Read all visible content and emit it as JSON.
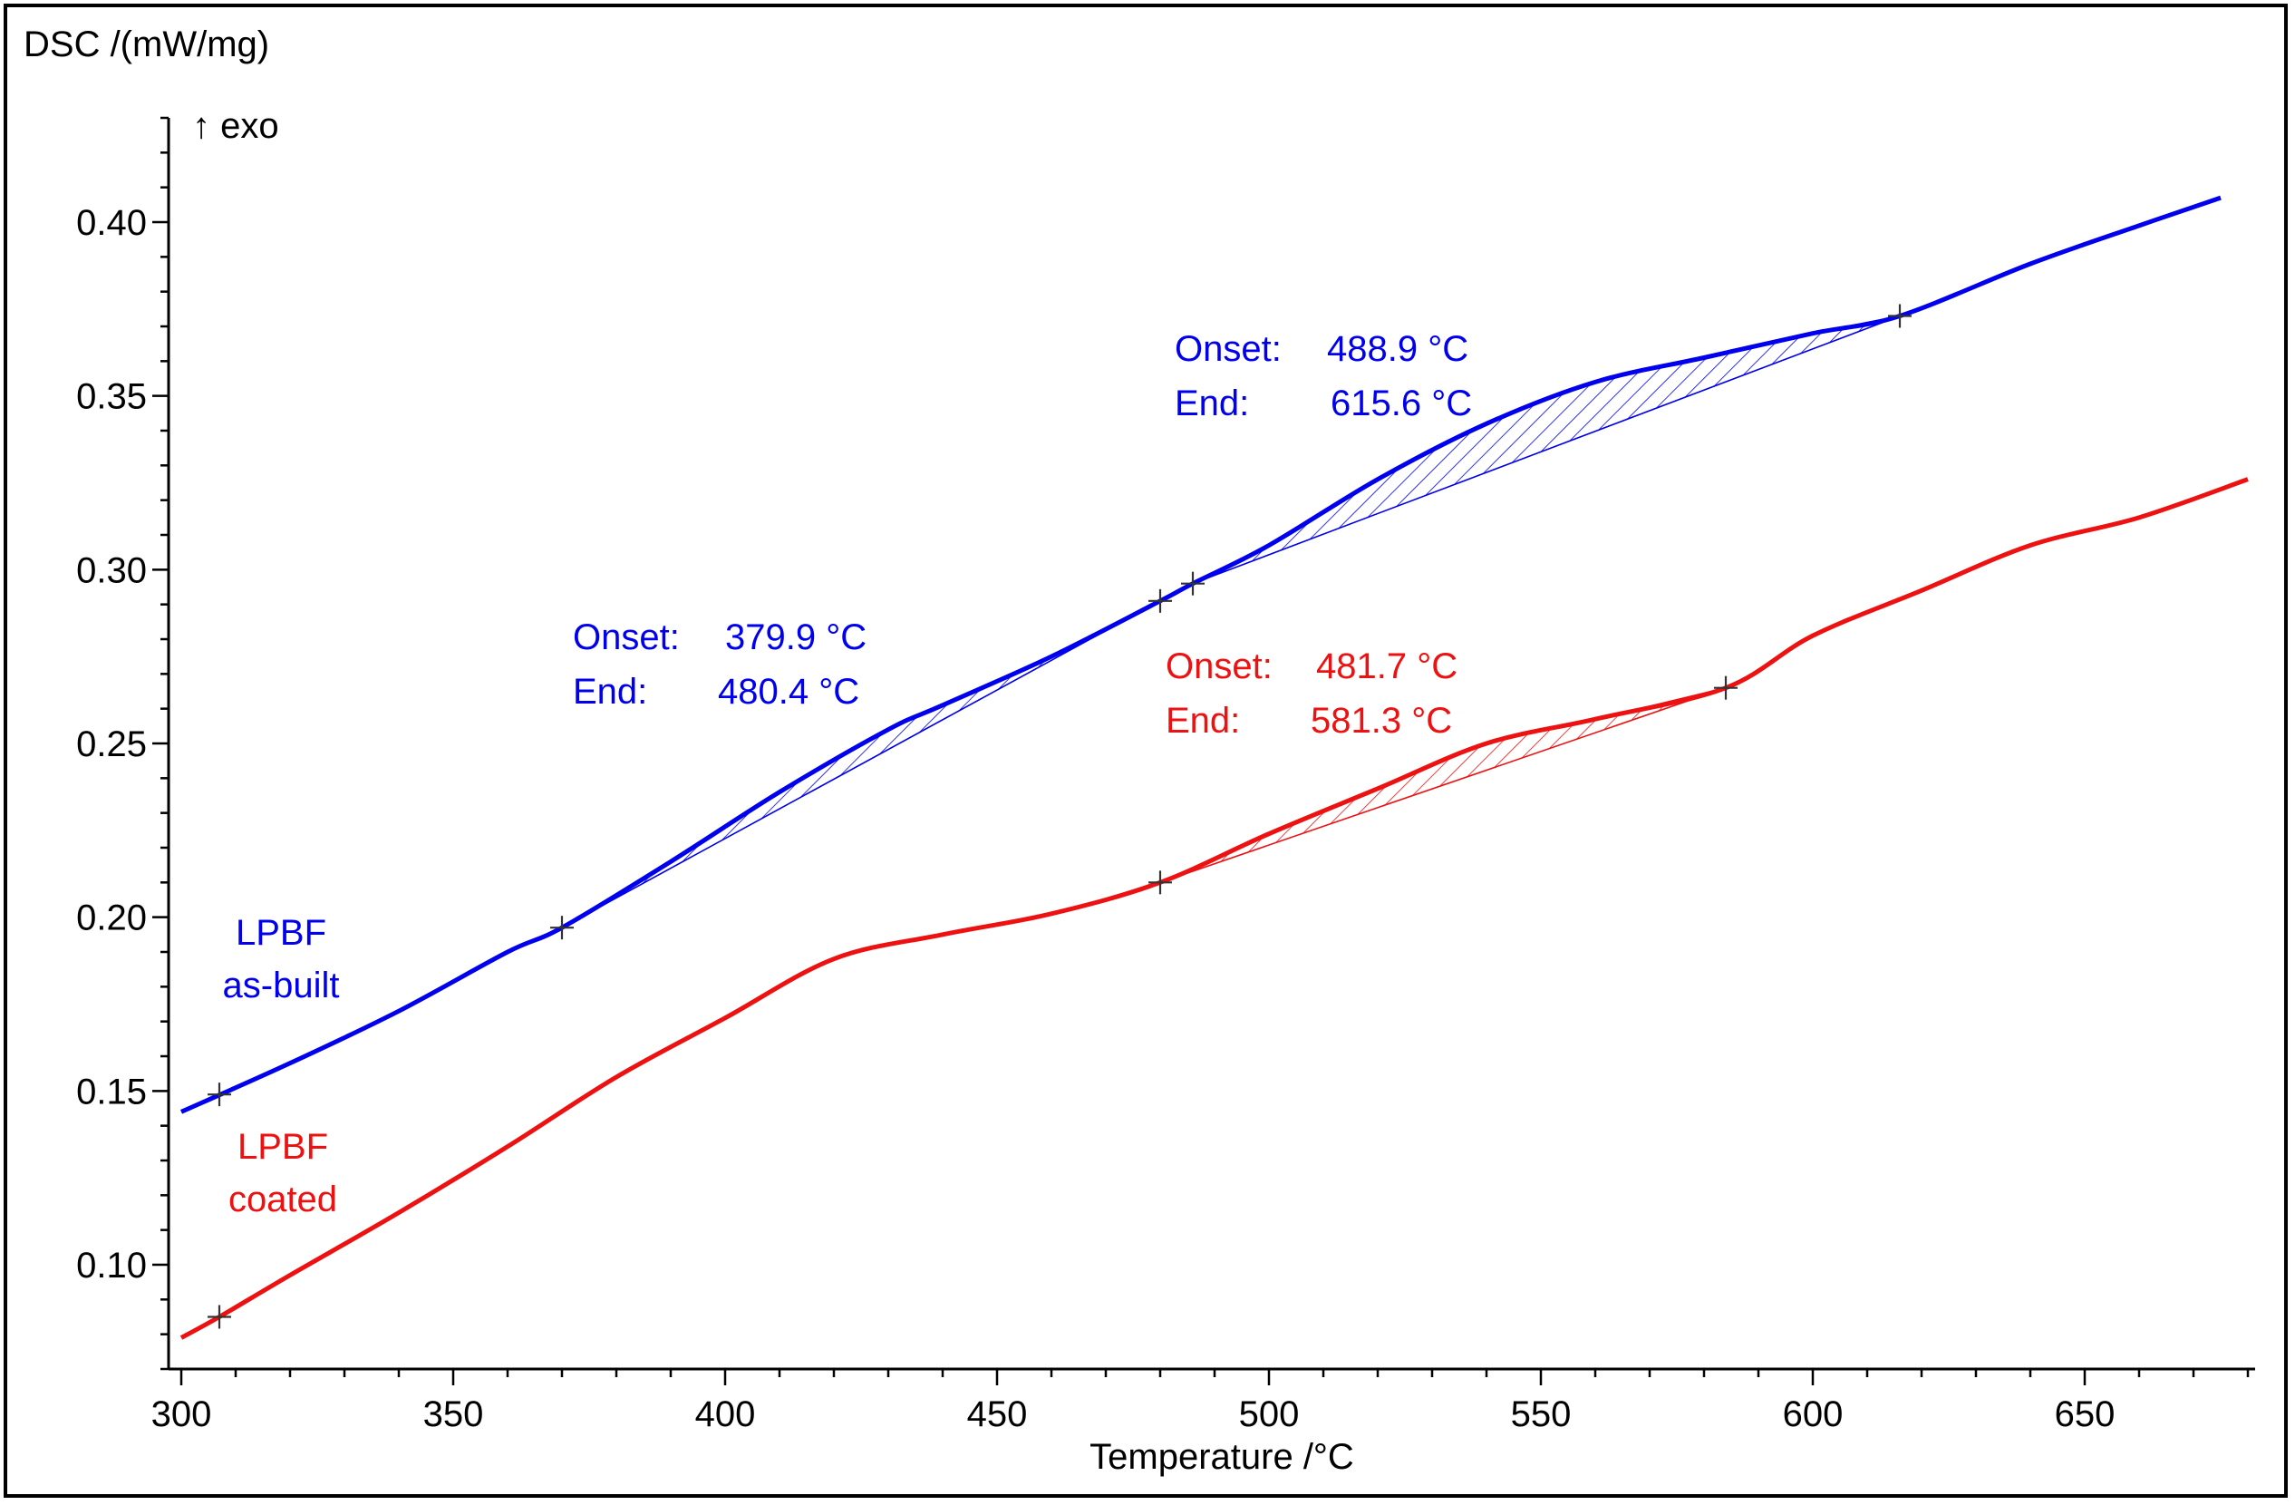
{
  "chart_data": {
    "type": "line",
    "ylabel": "DSC /(mW/mg)",
    "ylabel_suffix": "↑ exo",
    "xlabel": "Temperature /°C",
    "xlim": [
      300,
      682
    ],
    "ylim": [
      0.07,
      0.43
    ],
    "x_ticks": [
      300,
      350,
      400,
      450,
      500,
      550,
      600,
      650
    ],
    "y_ticks": [
      0.1,
      0.15,
      0.2,
      0.25,
      0.3,
      0.35,
      0.4
    ],
    "x_tick_labels": [
      "300",
      "350",
      "400",
      "450",
      "500",
      "550",
      "600",
      "650"
    ],
    "y_tick_labels": [
      "0.10",
      "0.15",
      "0.20",
      "0.25",
      "0.30",
      "0.35",
      "0.40"
    ],
    "grid": false,
    "series": [
      {
        "name": "LPBF as-built",
        "label_lines": [
          "LPBF",
          "as-built"
        ],
        "color": "#0000ee",
        "x": [
          300,
          320,
          340,
          360,
          370,
          390,
          410,
          430,
          440,
          460,
          480,
          486,
          500,
          520,
          540,
          560,
          580,
          600,
          616,
          640,
          660,
          675
        ],
        "y": [
          0.144,
          0.158,
          0.173,
          0.19,
          0.197,
          0.216,
          0.236,
          0.254,
          0.261,
          0.275,
          0.291,
          0.296,
          0.307,
          0.326,
          0.342,
          0.354,
          0.361,
          0.368,
          0.373,
          0.388,
          0.399,
          0.407
        ]
      },
      {
        "name": "LPBF coated",
        "label_lines": [
          "LPBF",
          "coated"
        ],
        "color": "#ee1111",
        "x": [
          300,
          307,
          320,
          340,
          360,
          380,
          400,
          420,
          440,
          460,
          480,
          500,
          520,
          540,
          560,
          584,
          600,
          620,
          640,
          660,
          680
        ],
        "y": [
          0.079,
          0.085,
          0.097,
          0.115,
          0.134,
          0.154,
          0.171,
          0.188,
          0.195,
          0.201,
          0.21,
          0.224,
          0.237,
          0.25,
          0.257,
          0.266,
          0.281,
          0.294,
          0.307,
          0.315,
          0.326
        ]
      }
    ],
    "markers": [
      {
        "series": 0,
        "x": 307,
        "y": 0.149
      },
      {
        "series": 0,
        "x": 370,
        "y": 0.197
      },
      {
        "series": 0,
        "x": 480,
        "y": 0.291
      },
      {
        "series": 0,
        "x": 486,
        "y": 0.296
      },
      {
        "series": 0,
        "x": 616,
        "y": 0.373
      },
      {
        "series": 1,
        "x": 307,
        "y": 0.085
      },
      {
        "series": 1,
        "x": 480,
        "y": 0.21
      },
      {
        "series": 1,
        "x": 584,
        "y": 0.266
      }
    ],
    "peaks": [
      {
        "series": 0,
        "x_start": 370,
        "x_end": 480,
        "onset_label": "Onset:",
        "onset_value": "379.9 °C",
        "end_label": "End:",
        "end_value": "480.4 °C"
      },
      {
        "series": 0,
        "x_start": 486,
        "x_end": 616,
        "onset_label": "Onset:",
        "onset_value": "488.9 °C",
        "end_label": "End:",
        "end_value": "615.6 °C"
      },
      {
        "series": 1,
        "x_start": 480,
        "x_end": 584,
        "onset_label": "Onset:",
        "onset_value": "481.7 °C",
        "end_label": "End:",
        "end_value": "581.3 °C"
      }
    ]
  }
}
